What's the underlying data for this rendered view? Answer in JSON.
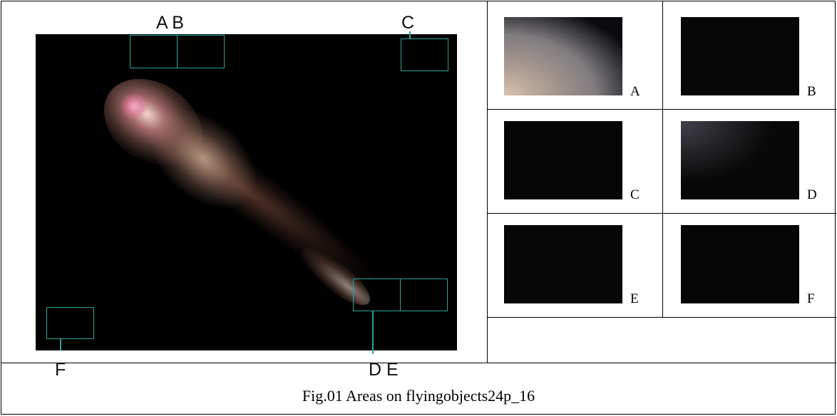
{
  "figure": {
    "caption": "Fig.01 Areas on flyingobjects24p_16",
    "photo_labels": {
      "ab": "A B",
      "c": "C",
      "de": "D E",
      "f": "F"
    },
    "highlight_color": "#2aa39a",
    "thumbnails": [
      {
        "label": "A"
      },
      {
        "label": "B"
      },
      {
        "label": "C"
      },
      {
        "label": "D"
      },
      {
        "label": "E"
      },
      {
        "label": "F"
      }
    ]
  }
}
